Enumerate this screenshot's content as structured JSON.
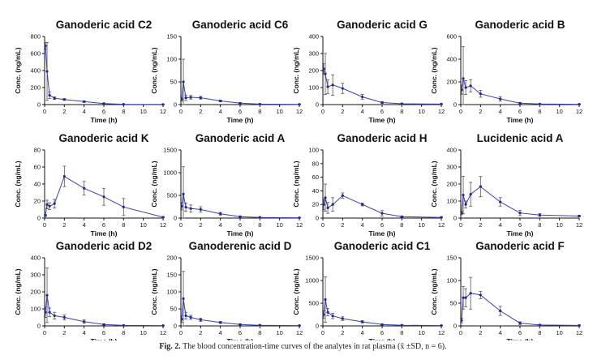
{
  "caption": {
    "label": "Fig. 2.",
    "text": "The blood concentration-time curves of the analytes in rat plasma (x̄ ±SD, n = 6)."
  },
  "colors": {
    "line": "#3b3fb0",
    "marker": "#23288f",
    "errorbar": "#555555",
    "axis": "#111111"
  },
  "chart_data": [
    {
      "type": "line",
      "title": "Ganoderic acid C2",
      "xlabel": "Time (h)",
      "ylabel": "Conc. (ng/mL)",
      "xlim": [
        0,
        12
      ],
      "xticks": [
        0,
        2,
        4,
        6,
        8,
        10,
        12
      ],
      "ylim": [
        0,
        800
      ],
      "yticks": [
        0,
        200,
        400,
        600,
        800
      ],
      "x": [
        0.083,
        0.25,
        0.5,
        1,
        2,
        4,
        6,
        8,
        12
      ],
      "y": [
        690,
        390,
        110,
        75,
        60,
        35,
        12,
        4,
        2
      ],
      "err": [
        40,
        340,
        40,
        15,
        10,
        8,
        4,
        2,
        1
      ]
    },
    {
      "type": "line",
      "title": "Ganoderic acid C6",
      "xlabel": "Time (h)",
      "ylabel": "Conc. (ng/mL)",
      "xlim": [
        0,
        12
      ],
      "xticks": [
        0,
        2,
        4,
        6,
        8,
        10,
        12
      ],
      "ylim": [
        0,
        150
      ],
      "yticks": [
        0,
        50,
        100,
        150
      ],
      "x": [
        0.083,
        0.25,
        0.5,
        1,
        2,
        4,
        6,
        8,
        12
      ],
      "y": [
        12,
        50,
        15,
        16,
        15,
        8,
        3,
        1,
        0.5
      ],
      "err": [
        4,
        50,
        6,
        4,
        3,
        2,
        1,
        0.5,
        0.3
      ]
    },
    {
      "type": "line",
      "title": "Ganoderic acid G",
      "xlabel": "Time (h)",
      "ylabel": "Conc. (ng/mL)",
      "xlim": [
        0,
        12
      ],
      "xticks": [
        0,
        2,
        4,
        6,
        8,
        10,
        12
      ],
      "ylim": [
        0,
        400
      ],
      "yticks": [
        0,
        100,
        200,
        300,
        400
      ],
      "x": [
        0.083,
        0.25,
        0.5,
        1,
        2,
        4,
        6,
        8,
        12
      ],
      "y": [
        210,
        180,
        105,
        115,
        95,
        45,
        12,
        5,
        3
      ],
      "err": [
        30,
        120,
        40,
        60,
        30,
        15,
        5,
        2,
        1
      ]
    },
    {
      "type": "line",
      "title": "Ganoderic acid B",
      "xlabel": "Time (h)",
      "ylabel": "Conc. (ng/mL)",
      "xlim": [
        0,
        12
      ],
      "xticks": [
        0,
        2,
        4,
        6,
        8,
        10,
        12
      ],
      "ylim": [
        0,
        600
      ],
      "yticks": [
        0,
        200,
        400,
        600
      ],
      "x": [
        0.083,
        0.25,
        0.5,
        1,
        2,
        4,
        6,
        8,
        12
      ],
      "y": [
        130,
        230,
        150,
        165,
        95,
        50,
        12,
        5,
        3
      ],
      "err": [
        40,
        280,
        60,
        55,
        30,
        20,
        6,
        3,
        1
      ]
    },
    {
      "type": "line",
      "title": "Ganoderic acid K",
      "xlabel": "Time (h)",
      "ylabel": "Conc. (ng/mL)",
      "xlim": [
        0,
        12
      ],
      "xticks": [
        0,
        2,
        4,
        6,
        8,
        10,
        12
      ],
      "ylim": [
        0,
        80
      ],
      "yticks": [
        0,
        20,
        40,
        60,
        80
      ],
      "x": [
        0.083,
        0.25,
        0.5,
        1,
        2,
        4,
        6,
        8,
        12
      ],
      "y": [
        3,
        16,
        14,
        17,
        49,
        35,
        25,
        13,
        1
      ],
      "err": [
        1,
        5,
        4,
        5,
        12,
        8,
        10,
        10,
        0.5
      ]
    },
    {
      "type": "line",
      "title": "Ganoderic acid A",
      "xlabel": "Time (h)",
      "ylabel": "Conc. (ng/mL)",
      "xlim": [
        0,
        12
      ],
      "xticks": [
        0,
        2,
        4,
        6,
        8,
        10,
        12
      ],
      "ylim": [
        0,
        1500
      ],
      "yticks": [
        0,
        500,
        1000,
        1500
      ],
      "x": [
        0.083,
        0.25,
        0.5,
        1,
        2,
        4,
        6,
        8,
        12
      ],
      "y": [
        260,
        530,
        240,
        210,
        190,
        95,
        30,
        15,
        8
      ],
      "err": [
        80,
        600,
        90,
        80,
        60,
        30,
        10,
        5,
        3
      ]
    },
    {
      "type": "line",
      "title": "Ganoderic acid H",
      "xlabel": "Time (h)",
      "ylabel": "Conc. (ng/mL)",
      "xlim": [
        0,
        12
      ],
      "xticks": [
        0,
        2,
        4,
        6,
        8,
        10,
        12
      ],
      "ylim": [
        0,
        100
      ],
      "yticks": [
        0,
        20,
        40,
        60,
        80,
        100
      ],
      "x": [
        0.083,
        0.25,
        0.5,
        1,
        2,
        4,
        6,
        8,
        12
      ],
      "y": [
        20,
        30,
        15,
        20,
        33,
        20,
        7,
        2,
        1
      ],
      "err": [
        8,
        20,
        8,
        10,
        4,
        2,
        4,
        1,
        0.5
      ]
    },
    {
      "type": "line",
      "title": "Lucidenic acid A",
      "xlabel": "Time (h)",
      "ylabel": "Conc. (ng/mL)",
      "xlim": [
        0,
        12
      ],
      "xticks": [
        0,
        2,
        4,
        6,
        8,
        10,
        12
      ],
      "ylim": [
        0,
        400
      ],
      "yticks": [
        0,
        100,
        200,
        300,
        400
      ],
      "x": [
        0.083,
        0.25,
        0.5,
        1,
        2,
        4,
        6,
        8,
        12
      ],
      "y": [
        30,
        135,
        80,
        140,
        185,
        95,
        30,
        18,
        12
      ],
      "err": [
        10,
        110,
        20,
        70,
        60,
        25,
        15,
        8,
        5
      ]
    },
    {
      "type": "line",
      "title": "Ganoderic acid D2",
      "xlabel": "Time (h)",
      "ylabel": "Conc. (ng/mL)",
      "xlim": [
        0,
        12
      ],
      "xticks": [
        0,
        2,
        4,
        6,
        8,
        10,
        12
      ],
      "ylim": [
        0,
        400
      ],
      "yticks": [
        0,
        100,
        200,
        300,
        400
      ],
      "x": [
        0.083,
        0.25,
        0.5,
        1,
        2,
        4,
        6,
        8,
        12
      ],
      "y": [
        80,
        180,
        80,
        60,
        50,
        25,
        8,
        3,
        2
      ],
      "err": [
        30,
        160,
        25,
        20,
        15,
        10,
        4,
        2,
        1
      ]
    },
    {
      "type": "line",
      "title": "Ganoderenic acid D",
      "xlabel": "Time (h)",
      "ylabel": "Conc. (ng/mL)",
      "xlim": [
        0,
        12
      ],
      "xticks": [
        0,
        2,
        4,
        6,
        8,
        10,
        12
      ],
      "ylim": [
        0,
        200
      ],
      "yticks": [
        0,
        50,
        100,
        150,
        200
      ],
      "x": [
        0.083,
        0.25,
        0.5,
        1,
        2,
        4,
        6,
        8,
        12
      ],
      "y": [
        20,
        80,
        30,
        25,
        18,
        10,
        4,
        2,
        1
      ],
      "err": [
        10,
        80,
        10,
        6,
        5,
        3,
        2,
        1,
        0.5
      ]
    },
    {
      "type": "line",
      "title": "Ganoderic acid C1",
      "xlabel": "Time (h)",
      "ylabel": "Conc. (ng/mL)",
      "xlim": [
        0,
        12
      ],
      "xticks": [
        0,
        2,
        4,
        6,
        8,
        10,
        12
      ],
      "ylim": [
        0,
        1500
      ],
      "yticks": [
        0,
        500,
        1000,
        1500
      ],
      "x": [
        0.083,
        0.25,
        0.5,
        1,
        2,
        4,
        6,
        8,
        12
      ],
      "y": [
        250,
        580,
        300,
        220,
        160,
        90,
        30,
        15,
        8
      ],
      "err": [
        80,
        500,
        80,
        60,
        40,
        25,
        10,
        5,
        3
      ]
    },
    {
      "type": "line",
      "title": "Ganoderic acid F",
      "xlabel": "Time (h)",
      "ylabel": "Conc. (ng/mL)",
      "xlim": [
        0,
        12
      ],
      "xticks": [
        0,
        2,
        4,
        6,
        8,
        10,
        12
      ],
      "ylim": [
        0,
        150
      ],
      "yticks": [
        0,
        50,
        100,
        150
      ],
      "x": [
        0.083,
        0.25,
        0.5,
        1,
        2,
        4,
        6,
        8,
        12
      ],
      "y": [
        12,
        62,
        62,
        72,
        68,
        33,
        6,
        2,
        1
      ],
      "err": [
        5,
        25,
        20,
        35,
        8,
        10,
        3,
        1,
        0.5
      ]
    }
  ]
}
